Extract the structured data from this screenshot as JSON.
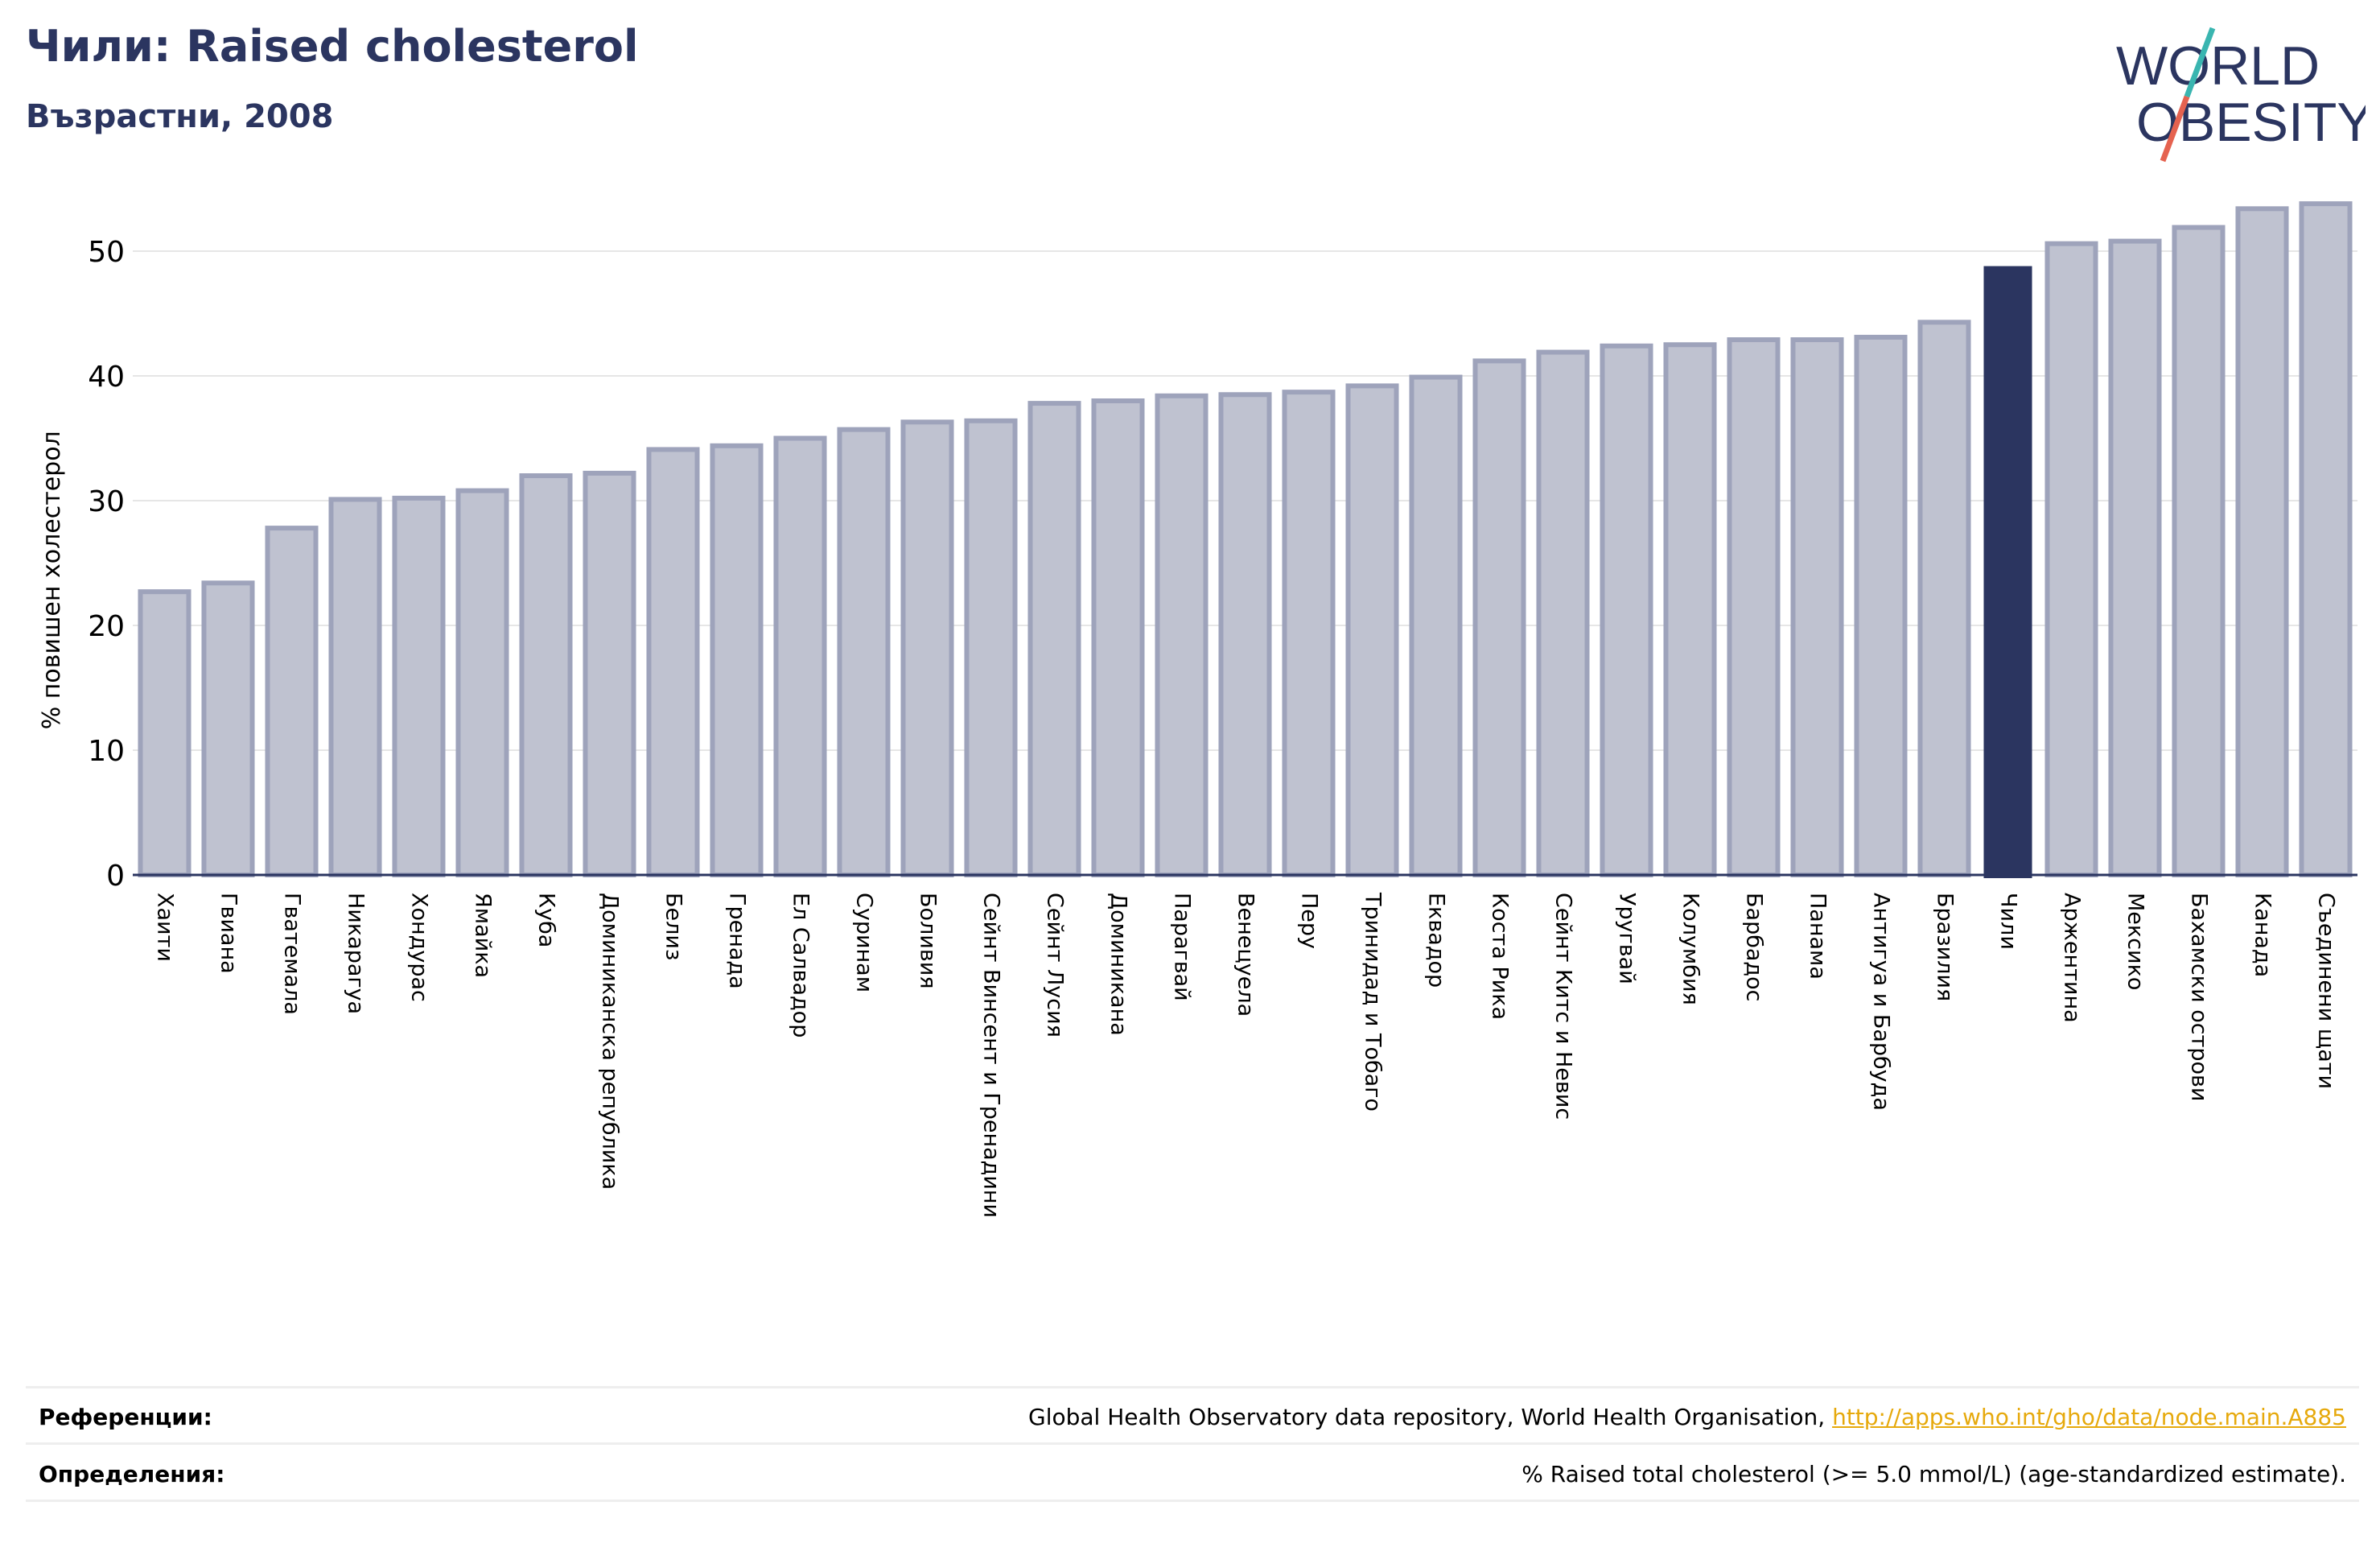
{
  "header": {
    "title": "Чили: Raised cholesterol",
    "subtitle": "Възрастни, 2008"
  },
  "logo": {
    "line1": "WORLD",
    "line2": "OBESITY"
  },
  "colors": {
    "highlight": "#2b3560",
    "bar": "#bfc2d0",
    "bar_border": "#9ea3bb",
    "grid": "#e6e6e6",
    "link": "#e6a90c",
    "logo_teal": "#3ab5b0",
    "logo_red": "#e5624f"
  },
  "chart_data": {
    "type": "bar",
    "title": "Чили: Raised cholesterol",
    "subtitle": "Възрастни, 2008",
    "ylabel": "% повишен холестерол",
    "xlabel": "",
    "ylim": [
      0,
      55
    ],
    "yticks": [
      0,
      10,
      20,
      30,
      40,
      50
    ],
    "grid": true,
    "highlight": "Чили",
    "categories": [
      "Хаити",
      "Гвиана",
      "Гватемала",
      "Никарагуа",
      "Хондурас",
      "Ямайка",
      "Куба",
      "Доминиканска република",
      "Белиз",
      "Гренада",
      "Ел Салвадор",
      "Суринам",
      "Боливия",
      "Сейнт Винсент и Гренадини",
      "Сейнт Лусия",
      "Доминикана",
      "Парагвай",
      "Венецуела",
      "Перу",
      "Тринидад и Тобаго",
      "Еквадор",
      "Коста Рика",
      "Сейнт Китс и Невис",
      "Уругвай",
      "Колумбия",
      "Барбадос",
      "Панама",
      "Антигуа и Барбуда",
      "Бразилия",
      "Чили",
      "Аржентина",
      "Мексико",
      "Бахамски острови",
      "Канада",
      "Съединени щати"
    ],
    "values": [
      22.7,
      23.4,
      27.8,
      30.1,
      30.2,
      30.8,
      32.0,
      32.2,
      34.1,
      34.4,
      35.0,
      35.7,
      36.3,
      36.4,
      37.8,
      38.0,
      38.4,
      38.5,
      38.7,
      39.2,
      39.9,
      41.2,
      41.9,
      42.4,
      42.5,
      42.9,
      42.9,
      43.1,
      44.3,
      48.8,
      50.6,
      50.8,
      51.9,
      53.4,
      53.8
    ]
  },
  "footer": {
    "references_label": "Референции:",
    "references_text": "Global Health Observatory data repository, World Health Organisation, ",
    "references_link": "http://apps.who.int/gho/data/node.main.A885",
    "definitions_label": "Определения:",
    "definitions_text": "% Raised total cholesterol (>= 5.0 mmol/L) (age-standardized estimate)."
  }
}
